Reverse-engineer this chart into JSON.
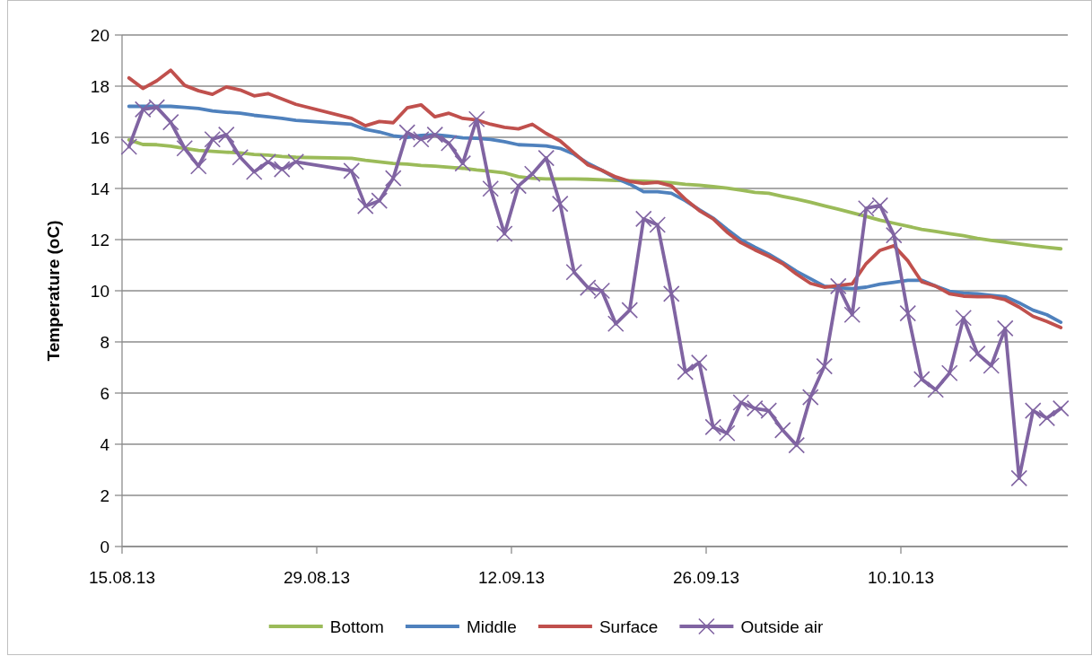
{
  "chart_data": {
    "type": "line",
    "ylabel": "Temperature (oC)",
    "x": [
      "2013-08-15T12:00",
      "2013-08-16T12:00",
      "2013-08-17T12:00",
      "2013-08-18T12:00",
      "2013-08-19T12:00",
      "2013-08-20T12:00",
      "2013-08-21T12:00",
      "2013-08-22T12:00",
      "2013-08-23T12:00",
      "2013-08-24T12:00",
      "2013-08-25T12:00",
      "2013-08-26T12:00",
      "2013-08-27T12:00",
      "2013-08-31T12:00",
      "2013-09-01T12:00",
      "2013-09-02T12:00",
      "2013-09-03T12:00",
      "2013-09-04T12:00",
      "2013-09-05T12:00",
      "2013-09-06T12:00",
      "2013-09-07T12:00",
      "2013-09-08T12:00",
      "2013-09-09T12:00",
      "2013-09-10T12:00",
      "2013-09-11T12:00",
      "2013-09-12T12:00",
      "2013-09-13T12:00",
      "2013-09-14T12:00",
      "2013-09-15T12:00",
      "2013-09-16T12:00",
      "2013-09-17T12:00",
      "2013-09-18T12:00",
      "2013-09-19T12:00",
      "2013-09-20T12:00",
      "2013-09-21T12:00",
      "2013-09-22T12:00",
      "2013-09-23T12:00",
      "2013-09-24T12:00",
      "2013-09-25T12:00",
      "2013-09-26T12:00",
      "2013-09-27T12:00",
      "2013-09-28T12:00",
      "2013-09-29T12:00",
      "2013-09-30T12:00",
      "2013-10-01T12:00",
      "2013-10-02T12:00",
      "2013-10-03T12:00",
      "2013-10-04T12:00",
      "2013-10-05T12:00",
      "2013-10-06T12:00",
      "2013-10-07T12:00",
      "2013-10-08T12:00",
      "2013-10-09T12:00",
      "2013-10-10T12:00",
      "2013-10-11T12:00",
      "2013-10-12T12:00",
      "2013-10-13T12:00",
      "2013-10-14T12:00",
      "2013-10-15T12:00",
      "2013-10-16T12:00",
      "2013-10-17T12:00",
      "2013-10-18T12:00",
      "2013-10-19T12:00",
      "2013-10-20T12:00",
      "2013-10-21T12:00"
    ],
    "xlim": [
      "2013-08-15",
      "2013-10-22"
    ],
    "xticks": [
      {
        "value": "2013-08-15",
        "label": "15.08.13"
      },
      {
        "value": "2013-08-29",
        "label": "29.08.13"
      },
      {
        "value": "2013-09-12",
        "label": "12.09.13"
      },
      {
        "value": "2013-09-26",
        "label": "26.09.13"
      },
      {
        "value": "2013-10-10",
        "label": "10.10.13"
      }
    ],
    "ylim": [
      0,
      20
    ],
    "yticks": [
      0,
      2,
      4,
      6,
      8,
      10,
      12,
      14,
      16,
      18,
      20
    ],
    "grid": "y",
    "legend": "bottom",
    "series": [
      {
        "name": "Bottom",
        "color": "#9bbb59",
        "values": [
          15.9,
          15.72,
          15.71,
          15.65,
          15.57,
          15.49,
          15.45,
          15.42,
          15.39,
          15.33,
          15.3,
          15.25,
          15.22,
          15.18,
          15.1,
          15.04,
          14.98,
          14.95,
          14.9,
          14.87,
          14.83,
          14.79,
          14.72,
          14.67,
          14.61,
          14.46,
          14.4,
          14.37,
          14.37,
          14.37,
          14.36,
          14.34,
          14.31,
          14.3,
          14.28,
          14.26,
          14.22,
          14.16,
          14.13,
          14.07,
          14.01,
          13.93,
          13.85,
          13.81,
          13.69,
          13.58,
          13.46,
          13.32,
          13.19,
          13.05,
          12.91,
          12.76,
          12.64,
          12.52,
          12.4,
          12.32,
          12.23,
          12.15,
          12.05,
          11.97,
          11.9,
          11.83,
          11.76,
          11.7,
          11.64
        ]
      },
      {
        "name": "Middle",
        "color": "#4f81bd",
        "values": [
          17.21,
          17.21,
          17.21,
          17.21,
          17.17,
          17.13,
          17.03,
          16.98,
          16.94,
          16.86,
          16.8,
          16.74,
          16.66,
          16.51,
          16.31,
          16.21,
          16.06,
          16.0,
          16.07,
          16.1,
          16.05,
          15.98,
          15.96,
          15.92,
          15.83,
          15.71,
          15.69,
          15.66,
          15.57,
          15.34,
          14.98,
          14.71,
          14.4,
          14.17,
          13.87,
          13.87,
          13.81,
          13.52,
          13.17,
          12.84,
          12.4,
          11.99,
          11.7,
          11.43,
          11.11,
          10.76,
          10.47,
          10.18,
          10.12,
          10.08,
          10.14,
          10.26,
          10.33,
          10.41,
          10.41,
          10.18,
          9.98,
          9.91,
          9.88,
          9.82,
          9.77,
          9.53,
          9.24,
          9.06,
          8.77
        ]
      },
      {
        "name": "Surface",
        "color": "#c0504d",
        "values": [
          18.32,
          17.91,
          18.21,
          18.62,
          18.03,
          17.82,
          17.68,
          17.97,
          17.85,
          17.62,
          17.71,
          17.5,
          17.29,
          16.74,
          16.45,
          16.62,
          16.57,
          17.15,
          17.27,
          16.8,
          16.94,
          16.74,
          16.68,
          16.51,
          16.39,
          16.33,
          16.51,
          16.15,
          15.86,
          15.39,
          14.92,
          14.71,
          14.45,
          14.28,
          14.2,
          14.24,
          14.1,
          13.58,
          13.14,
          12.81,
          12.29,
          11.88,
          11.6,
          11.35,
          11.06,
          10.65,
          10.29,
          10.14,
          10.21,
          10.27,
          11.06,
          11.58,
          11.76,
          11.17,
          10.35,
          10.18,
          9.88,
          9.79,
          9.77,
          9.77,
          9.65,
          9.36,
          9.0,
          8.8,
          8.56
        ]
      },
      {
        "name": "Outside air",
        "color": "#8064a2",
        "marker": "cross",
        "values": [
          15.63,
          17.09,
          17.17,
          16.59,
          15.57,
          14.87,
          15.92,
          16.1,
          15.22,
          14.65,
          15.04,
          14.75,
          15.04,
          14.69,
          13.31,
          13.52,
          14.4,
          16.19,
          15.92,
          16.1,
          15.77,
          14.98,
          16.71,
          13.99,
          12.23,
          14.1,
          14.57,
          15.19,
          13.4,
          10.73,
          10.12,
          10.0,
          8.71,
          9.24,
          12.81,
          12.58,
          9.88,
          6.83,
          7.19,
          4.67,
          4.43,
          5.63,
          5.4,
          5.31,
          4.55,
          3.96,
          5.84,
          7.05,
          10.18,
          9.06,
          13.22,
          13.34,
          12.17,
          9.12,
          6.54,
          6.13,
          6.78,
          8.94,
          7.54,
          7.07,
          8.53,
          2.67,
          5.31,
          5.02,
          5.4
        ]
      }
    ]
  }
}
